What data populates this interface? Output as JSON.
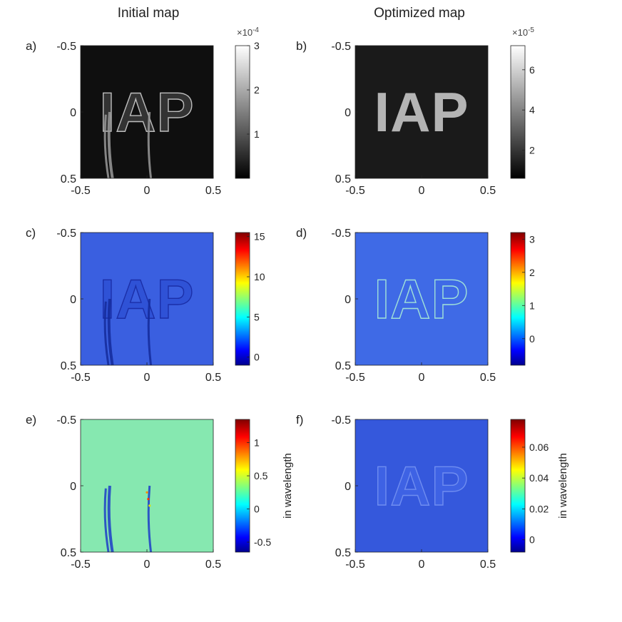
{
  "columns": [
    "Initial map",
    "Optimized map"
  ],
  "chart_data": [
    {
      "panel": "a)",
      "column": "Initial map",
      "type": "heatmap",
      "colormap": "gray",
      "image_text": "IAP",
      "x_ticks": [
        "-0.5",
        "0",
        "0.5"
      ],
      "y_ticks": [
        "-0.5",
        "0",
        "0.5"
      ],
      "xlim": [
        -0.5,
        0.5
      ],
      "ylim": [
        -0.5,
        0.5
      ],
      "colorbar": {
        "range": [
          0.0,
          3.0
        ],
        "ticks": [
          "1",
          "2",
          "3"
        ],
        "tick_values": [
          1,
          2,
          3
        ],
        "exponent": "×10",
        "exponent_power": "-4",
        "label": ""
      },
      "style": {
        "background": "#0f0f0f",
        "letters": "#333333",
        "edges": "#bdbdbd",
        "letters_opacity": 1
      }
    },
    {
      "panel": "b)",
      "column": "Optimized map",
      "type": "heatmap",
      "colormap": "gray",
      "image_text": "IAP",
      "x_ticks": [
        "-0.5",
        "0",
        "0.5"
      ],
      "y_ticks": [
        "-0.5",
        "0",
        "0.5"
      ],
      "xlim": [
        -0.5,
        0.5
      ],
      "ylim": [
        -0.5,
        0.5
      ],
      "colorbar": {
        "range": [
          0.6,
          7.2
        ],
        "ticks": [
          "2",
          "4",
          "6"
        ],
        "tick_values": [
          2,
          4,
          6
        ],
        "exponent": "×10",
        "exponent_power": "-5",
        "label": ""
      },
      "style": {
        "background": "#1a1a1a",
        "letters": "#b4b4b4",
        "edges": "none",
        "letters_opacity": 1
      }
    },
    {
      "panel": "c)",
      "column": "Initial map",
      "type": "heatmap",
      "colormap": "jet",
      "image_text": "IAP",
      "x_ticks": [
        "-0.5",
        "0",
        "0.5"
      ],
      "y_ticks": [
        "-0.5",
        "0",
        "0.5"
      ],
      "xlim": [
        -0.5,
        0.5
      ],
      "ylim": [
        -0.5,
        0.5
      ],
      "colorbar": {
        "range": [
          -1.0,
          15.5
        ],
        "ticks": [
          "0",
          "5",
          "10",
          "15"
        ],
        "tick_values": [
          0,
          5,
          10,
          15
        ],
        "label": ""
      },
      "style": {
        "background": "#3a5fe0",
        "letters": "#2f52d6",
        "edges": "#1b2fa8",
        "letters_opacity": 1
      }
    },
    {
      "panel": "d)",
      "column": "Optimized map",
      "type": "heatmap",
      "colormap": "jet",
      "image_text": "IAP",
      "x_ticks": [
        "-0.5",
        "0",
        "0.5"
      ],
      "y_ticks": [
        "-0.5",
        "0",
        "0.5"
      ],
      "xlim": [
        -0.5,
        0.5
      ],
      "ylim": [
        -0.5,
        0.5
      ],
      "colorbar": {
        "range": [
          -0.8,
          3.2
        ],
        "ticks": [
          "0",
          "1",
          "2",
          "3"
        ],
        "tick_values": [
          0,
          1,
          2,
          3
        ],
        "label": ""
      },
      "style": {
        "background": "#3f6ae6",
        "letters": "#3f6ae6",
        "edges": "#9fe0d8",
        "letters_opacity": 1
      }
    },
    {
      "panel": "e)",
      "column": "Initial map",
      "type": "heatmap",
      "colormap": "jet",
      "image_text": "",
      "x_ticks": [
        "-0.5",
        "0",
        "0.5"
      ],
      "y_ticks": [
        "-0.5",
        "0",
        "0.5"
      ],
      "xlim": [
        -0.5,
        0.5
      ],
      "ylim": [
        -0.5,
        0.5
      ],
      "colorbar": {
        "range": [
          -0.65,
          1.35
        ],
        "ticks": [
          "-0.5",
          "0",
          "0.5",
          "1"
        ],
        "tick_values": [
          -0.5,
          0,
          0.5,
          1
        ],
        "label": "in wavelength"
      },
      "style": {
        "background": "#86e8b0",
        "letters": "none",
        "edges": "#2d5be0",
        "letters_opacity": 0
      }
    },
    {
      "panel": "f)",
      "column": "Optimized map",
      "type": "heatmap",
      "colormap": "jet",
      "image_text": "IAP",
      "x_ticks": [
        "-0.5",
        "0",
        "0.5"
      ],
      "y_ticks": [
        "-0.5",
        "0",
        "0.5"
      ],
      "xlim": [
        -0.5,
        0.5
      ],
      "ylim": [
        -0.5,
        0.5
      ],
      "colorbar": {
        "range": [
          -0.008,
          0.078
        ],
        "ticks": [
          "0",
          "0.02",
          "0.04",
          "0.06"
        ],
        "tick_values": [
          0,
          0.02,
          0.04,
          0.06
        ],
        "label": "in wavelength"
      },
      "style": {
        "background": "#3558dc",
        "letters": "#3f64e4",
        "edges": "#6f8df0",
        "letters_opacity": 0.9
      }
    }
  ]
}
